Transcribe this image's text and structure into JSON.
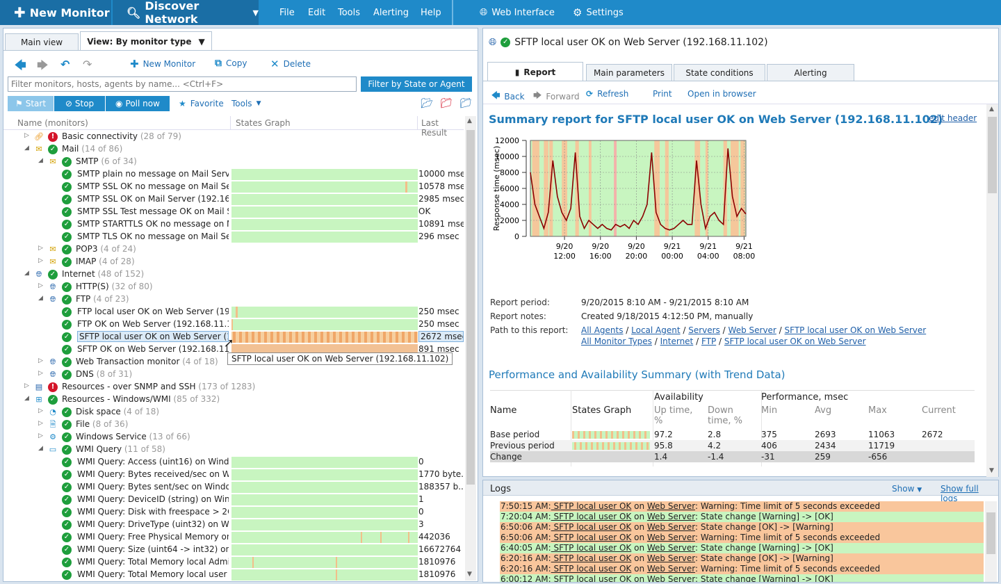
{
  "toolbar": {
    "new_monitor": "New Monitor",
    "discover": "Discover Network",
    "menu": [
      "File",
      "Edit",
      "Tools",
      "Alerting",
      "Help"
    ],
    "web_interface": "Web Interface",
    "settings": "Settings"
  },
  "left": {
    "tabs": [
      "Main view",
      "View: By monitor type"
    ],
    "actions": {
      "new": "New Monitor",
      "copy": "Copy",
      "delete": "Delete"
    },
    "search_placeholder": "Filter monitors, hosts, agents by name... <Ctrl+F>",
    "filter_btn": "Filter by State or Agent",
    "start": "Start",
    "stop": "Stop",
    "poll": "Poll now",
    "favorite": "Favorite",
    "tools": "Tools",
    "columns": [
      "Name (monitors)",
      "States Graph",
      "Last Result"
    ],
    "rows": [
      {
        "level": 0,
        "exp": "closed",
        "status": "err",
        "icon": "link",
        "name": "Basic connectivity",
        "count": "(28 of 79)"
      },
      {
        "level": 0,
        "exp": "open",
        "status": "ok",
        "icon": "mail",
        "name": "Mail",
        "count": "(14 of 86)"
      },
      {
        "level": 1,
        "exp": "open",
        "status": "ok",
        "icon": "mail",
        "name": "SMTP",
        "count": "(6 of 34)"
      },
      {
        "level": 2,
        "status": "ok",
        "name": "SMTP plain no message on Mail Server ...",
        "result": "10000 msec",
        "graph": true
      },
      {
        "level": 2,
        "status": "ok",
        "name": "SMTP SSL OK no message on Mail Serv...",
        "result": "10578 msec",
        "graph": true
      },
      {
        "level": 2,
        "status": "ok",
        "name": "SMTP SSL OK on Mail Server (192.168.1...",
        "result": "2985 msec",
        "graph": true
      },
      {
        "level": 2,
        "status": "ok",
        "name": "SMTP SSL Test message OK on Mail Ser...",
        "result": "OK",
        "graph": true
      },
      {
        "level": 2,
        "status": "ok",
        "name": "SMTP STARTTLS OK no message on Ma...",
        "result": "10891 msec",
        "graph": true
      },
      {
        "level": 2,
        "status": "ok",
        "name": "SMTP TLS OK no message on Mail Serv...",
        "result": "296 msec",
        "graph": true
      },
      {
        "level": 1,
        "exp": "closed",
        "status": "ok",
        "icon": "mail",
        "name": "POP3",
        "count": "(4 of 24)"
      },
      {
        "level": 1,
        "exp": "closed",
        "status": "ok",
        "icon": "mail",
        "name": "IMAP",
        "count": "(4 of 28)"
      },
      {
        "level": 0,
        "exp": "open",
        "status": "ok",
        "icon": "globe",
        "name": "Internet",
        "count": "(48 of 152)"
      },
      {
        "level": 1,
        "exp": "closed",
        "status": "ok",
        "icon": "globe",
        "name": "HTTP(S)",
        "count": "(32 of 80)"
      },
      {
        "level": 1,
        "exp": "open",
        "status": "ok",
        "icon": "globe",
        "name": "FTP",
        "count": "(4 of 23)"
      },
      {
        "level": 2,
        "status": "ok",
        "name": "FTP local user OK on Web Server (192.1...",
        "result": "250 msec",
        "graph": true
      },
      {
        "level": 2,
        "status": "ok",
        "name": "FTP OK on Web Server (192.168.11.102)",
        "result": "250 msec",
        "graph": true
      },
      {
        "level": 2,
        "status": "ok",
        "name": "SFTP local user OK on Web Server (192...",
        "result": "2672 msec",
        "graph": true,
        "selected": true
      },
      {
        "level": 2,
        "status": "ok",
        "name": "SFTP OK on Web Server (192.168.11.102)",
        "result": "891 msec",
        "graph": true
      },
      {
        "level": 1,
        "exp": "closed",
        "status": "ok",
        "icon": "globe",
        "name": "Web Transaction monitor",
        "count": "(4 of 18)"
      },
      {
        "level": 1,
        "exp": "closed",
        "status": "ok",
        "icon": "globe",
        "name": "DNS",
        "count": "(8 of 31)"
      },
      {
        "level": 0,
        "exp": "closed",
        "status": "err",
        "icon": "server",
        "name": "Resources - over SNMP and SSH",
        "count": "(173 of 1283)"
      },
      {
        "level": 0,
        "exp": "open",
        "status": "ok",
        "icon": "windows",
        "name": "Resources - Windows/WMI",
        "count": "(85 of 332)"
      },
      {
        "level": 1,
        "exp": "closed",
        "status": "ok",
        "icon": "disk",
        "name": "Disk space",
        "count": "(4 of 18)"
      },
      {
        "level": 1,
        "exp": "closed",
        "status": "ok",
        "icon": "file",
        "name": "File",
        "count": "(8 of 36)"
      },
      {
        "level": 1,
        "exp": "closed",
        "status": "ok",
        "icon": "gear",
        "name": "Windows Service",
        "count": "(13 of 66)"
      },
      {
        "level": 1,
        "exp": "open",
        "status": "ok",
        "icon": "wmi",
        "name": "WMI Query",
        "count": "(11 of 58)"
      },
      {
        "level": 2,
        "status": "ok",
        "name": "WMI Query: Access (uint16) on Windo...",
        "result": "0",
        "graph": true
      },
      {
        "level": 2,
        "status": "ok",
        "name": "WMI Query: Bytes received/sec on Win...",
        "result": "1770 byte...",
        "graph": true
      },
      {
        "level": 2,
        "status": "ok",
        "name": "WMI Query: Bytes sent/sec on Window...",
        "result": "188357 b...",
        "graph": true
      },
      {
        "level": 2,
        "status": "ok",
        "name": "WMI Query: DeviceID (string) on Windo...",
        "result": "1",
        "graph": true
      },
      {
        "level": 2,
        "status": "ok",
        "name": "WMI Query: Disk with freespace > 2Gb ...",
        "result": "0",
        "graph": true
      },
      {
        "level": 2,
        "status": "ok",
        "name": "WMI Query: DriveType (uint32) on Win...",
        "result": "3",
        "graph": true
      },
      {
        "level": 2,
        "status": "ok",
        "name": "WMI Query: Free Physical Memory on ...",
        "result": "442036",
        "graph": true
      },
      {
        "level": 2,
        "status": "ok",
        "name": "WMI Query: Size (uint64 -> int32) on W...",
        "result": "16672764",
        "graph": true
      },
      {
        "level": 2,
        "status": "ok",
        "name": "WMI Query: Total Memory local Admin...",
        "result": "1810976",
        "graph": true
      },
      {
        "level": 2,
        "status": "ok",
        "name": "WMI Query: Total Memory local user a...",
        "result": "1810976",
        "graph": true
      }
    ],
    "tooltip": "SFTP local user OK on Web Server (192.168.11.102)"
  },
  "right": {
    "title": "SFTP local user OK on Web Server (192.168.11.102)",
    "tabs": [
      "Report",
      "Main parameters",
      "State conditions",
      "Alerting"
    ],
    "nav": {
      "back": "Back",
      "forward": "Forward",
      "refresh": "Refresh",
      "print": "Print",
      "open": "Open in browser"
    },
    "heading": "Summary report for SFTP local user OK on Web Server (192.168.11.102)",
    "edit_header": "edit header",
    "report_period_label": "Report period:",
    "report_period": "9/20/2015 8:10 AM - 9/21/2015 8:10 AM",
    "report_notes_label": "Report notes:",
    "report_notes": "Created 9/18/2015 4:12:50 PM, manually",
    "path_label": "Path to this report:",
    "path1": [
      "All Agents",
      "Local Agent",
      "Servers",
      "Web Server",
      "SFTP local user OK on Web Server"
    ],
    "path2": [
      "All Monitor Types",
      "Internet",
      "FTP",
      "SFTP local user OK on Web Server"
    ],
    "perf_heading": "Performance and Availability Summary (with Trend Data)",
    "table_headers": {
      "name": "Name",
      "states": "States Graph",
      "avail": "Availability",
      "perf": "Performance, msec",
      "up": "Up time, %",
      "down": "Down time, %",
      "min": "Min",
      "avg": "Avg",
      "max": "Max",
      "current": "Current"
    },
    "table_rows": [
      {
        "name": "Base period",
        "up": "97.2",
        "down": "2.8",
        "min": "375",
        "avg": "2693",
        "max": "11063",
        "current": "2672"
      },
      {
        "name": "Previous period",
        "up": "95.8",
        "down": "4.2",
        "min": "406",
        "avg": "2434",
        "max": "11719",
        "current": ""
      },
      {
        "name": "Change",
        "up": "1.4",
        "down": "-1.4",
        "min": "-31",
        "avg": "259",
        "max": "-656",
        "current": ""
      }
    ]
  },
  "chart_data": {
    "type": "line",
    "ylabel": "Response time (msec)",
    "ylim": [
      0,
      12000
    ],
    "yticks": [
      "12000",
      "10000",
      "8000",
      "6000",
      "4000",
      "2000",
      "0"
    ],
    "xticks": [
      [
        "9/20",
        "12:00"
      ],
      [
        "9/20",
        "16:00"
      ],
      [
        "9/20",
        "20:00"
      ],
      [
        "9/21",
        "00:00"
      ],
      [
        "9/21",
        "04:00"
      ],
      [
        "9/21",
        "08:00"
      ]
    ],
    "x_hours": [
      0,
      0.5,
      1,
      1.5,
      2,
      2.5,
      3,
      3.5,
      4,
      4.5,
      5,
      5.5,
      6,
      6.5,
      7,
      7.5,
      8,
      8.5,
      9,
      9.5,
      10,
      10.5,
      11,
      11.5,
      12,
      12.5,
      13,
      13.5,
      14,
      14.5,
      15,
      15.5,
      16,
      16.5,
      17,
      17.5,
      18,
      18.5,
      19,
      19.5,
      20,
      20.5,
      21,
      21.5,
      22,
      22.5,
      23,
      23.5,
      24
    ],
    "values": [
      8000,
      4000,
      2500,
      1000,
      3000,
      9500,
      5000,
      3000,
      2000,
      3500,
      10500,
      2500,
      1000,
      2000,
      1500,
      1000,
      1500,
      1000,
      800,
      1500,
      1200,
      1500,
      1000,
      2000,
      1500,
      2500,
      4000,
      10500,
      3000,
      1500,
      1000,
      800,
      1000,
      1500,
      2000,
      1500,
      1500,
      9500,
      4000,
      1000,
      2500,
      3000,
      2000,
      1500,
      11000,
      5000,
      2500,
      3500,
      2800
    ],
    "series_color": "#8b0000"
  },
  "logs": {
    "title": "Logs",
    "show": "Show",
    "show_full": "Show full logs",
    "entries": [
      {
        "time": "7:50:15 AM:",
        "monitor": "SFTP local user OK",
        "on": "on",
        "host": "Web Server",
        "msg": ": Warning: Time limit of 5 seconds exceeded",
        "type": "warn"
      },
      {
        "time": "7:20:04 AM:",
        "monitor": "SFTP local user OK",
        "on": "on",
        "host": "Web Server",
        "msg": ": State change [Warning] -> [OK]",
        "type": "ok"
      },
      {
        "time": "6:50:06 AM:",
        "monitor": "SFTP local user OK",
        "on": "on",
        "host": "Web Server",
        "msg": ": State change [OK] -> [Warning]",
        "type": "warn"
      },
      {
        "time": "6:50:06 AM:",
        "monitor": "SFTP local user OK",
        "on": "on",
        "host": "Web Server",
        "msg": ": Warning: Time limit of 5 seconds exceeded",
        "type": "warn"
      },
      {
        "time": "6:40:05 AM:",
        "monitor": "SFTP local user OK",
        "on": "on",
        "host": "Web Server",
        "msg": ": State change [Warning] -> [OK]",
        "type": "ok"
      },
      {
        "time": "6:20:16 AM:",
        "monitor": "SFTP local user OK",
        "on": "on",
        "host": "Web Server",
        "msg": ": State change [OK] -> [Warning]",
        "type": "warn"
      },
      {
        "time": "6:20:16 AM:",
        "monitor": "SFTP local user OK",
        "on": "on",
        "host": "Web Server",
        "msg": ": Warning: Time limit of 5 seconds exceeded",
        "type": "warn"
      },
      {
        "time": "6:00:12 AM:",
        "monitor": "SFTP local user OK",
        "on": "on",
        "host": "Web Server",
        "msg": ": State change [Warning] -> [OK]",
        "type": "ok"
      }
    ]
  }
}
